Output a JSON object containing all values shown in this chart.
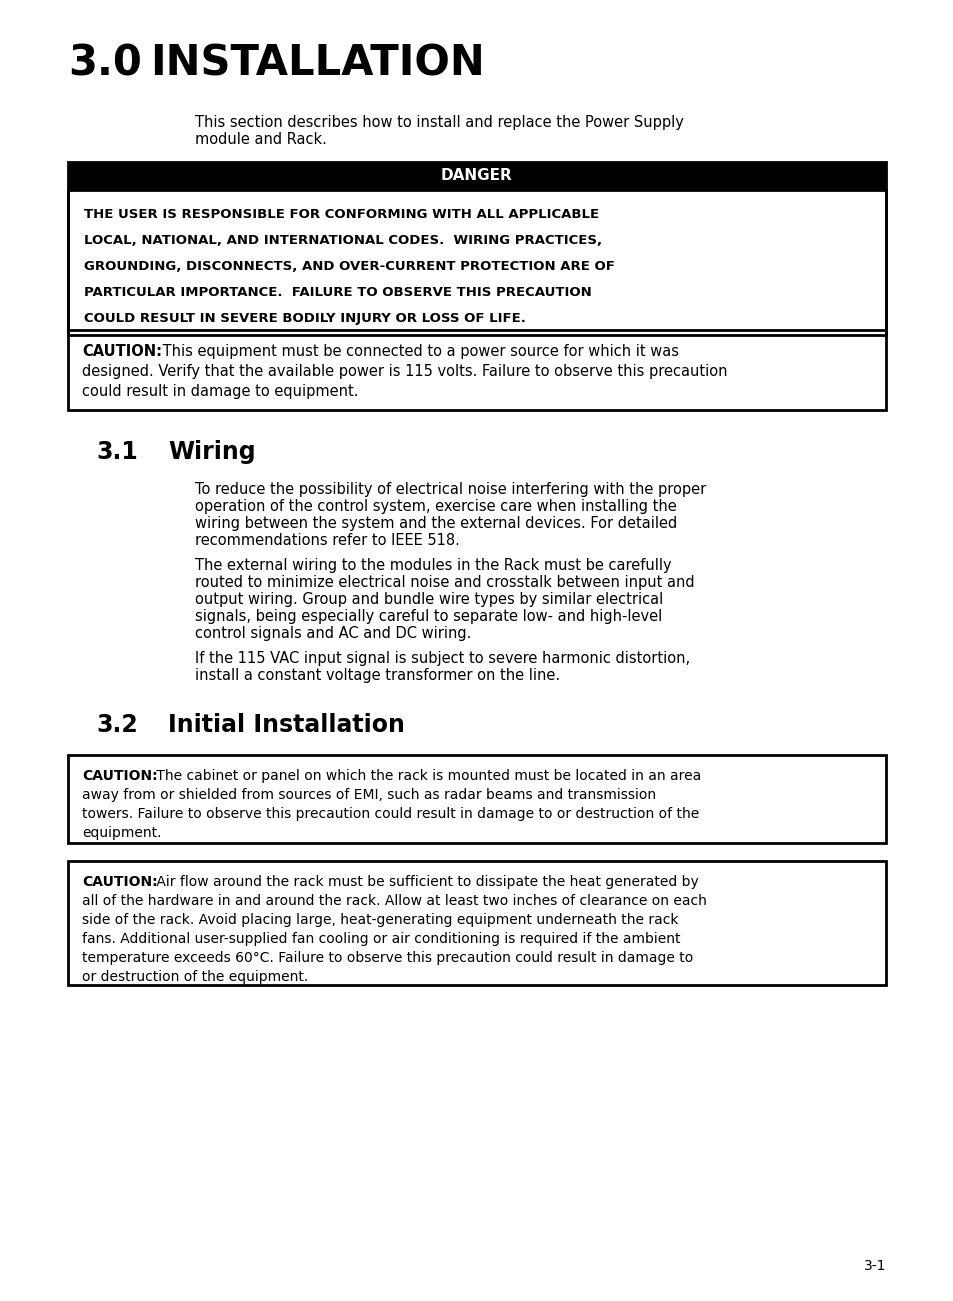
{
  "bg_color": "#ffffff",
  "text_color": "#000000",
  "page_number": "3-1",
  "main_title_num": "3.0",
  "main_title_text": "INSTALLATION",
  "intro_line1": "This section describes how to install and replace the Power Supply",
  "intro_line2": "module and Rack.",
  "danger_label": "DANGER",
  "danger_lines": [
    "THE USER IS RESPONSIBLE FOR CONFORMING WITH ALL APPLICABLE",
    "LOCAL, NATIONAL, AND INTERNATIONAL CODES.  WIRING PRACTICES,",
    "GROUNDING, DISCONNECTS, AND OVER-CURRENT PROTECTION ARE OF",
    "PARTICULAR IMPORTANCE.  FAILURE TO OBSERVE THIS PRECAUTION",
    "COULD RESULT IN SEVERE BODILY INJURY OR LOSS OF LIFE."
  ],
  "caution1_rest": [
    " This equipment must be connected to a power source for which it was",
    "designed. Verify that the available power is 115 volts. Failure to observe this precaution",
    "could result in damage to equipment."
  ],
  "sec31_num": "3.1",
  "sec31_title": "Wiring",
  "wiring_para1": [
    "To reduce the possibility of electrical noise interfering with the proper",
    "operation of the control system, exercise care when installing the",
    "wiring between the system and the external devices. For detailed",
    "recommendations refer to IEEE 518."
  ],
  "wiring_para2": [
    "The external wiring to the modules in the Rack must be carefully",
    "routed to minimize electrical noise and crosstalk between input and",
    "output wiring. Group and bundle wire types by similar electrical",
    "signals, being especially careful to separate low- and high-level",
    "control signals and AC and DC wiring."
  ],
  "wiring_para3": [
    "If the 115 VAC input signal is subject to severe harmonic distortion,",
    "install a constant voltage transformer on the line."
  ],
  "sec32_num": "3.2",
  "sec32_title": "Initial Installation",
  "caution2_line1": " The cabinet or panel on which the rack is mounted must be located in an area",
  "caution2_rest": [
    "away from or shielded from sources of EMI, such as radar beams and transmission",
    "towers. Failure to observe this precaution could result in damage to or destruction of the",
    "equipment."
  ],
  "caution3_line1": " Air flow around the rack must be sufficient to dissipate the heat generated by",
  "caution3_rest": [
    "all of the hardware in and around the rack. Allow at least two inches of clearance on each",
    "side of the rack. Avoid placing large, heat-generating equipment underneath the rack",
    "fans. Additional user-supplied fan cooling or air conditioning is required if the ambient",
    "temperature exceeds 60°C. Failure to observe this precaution could result in damage to",
    "or destruction of the equipment."
  ]
}
